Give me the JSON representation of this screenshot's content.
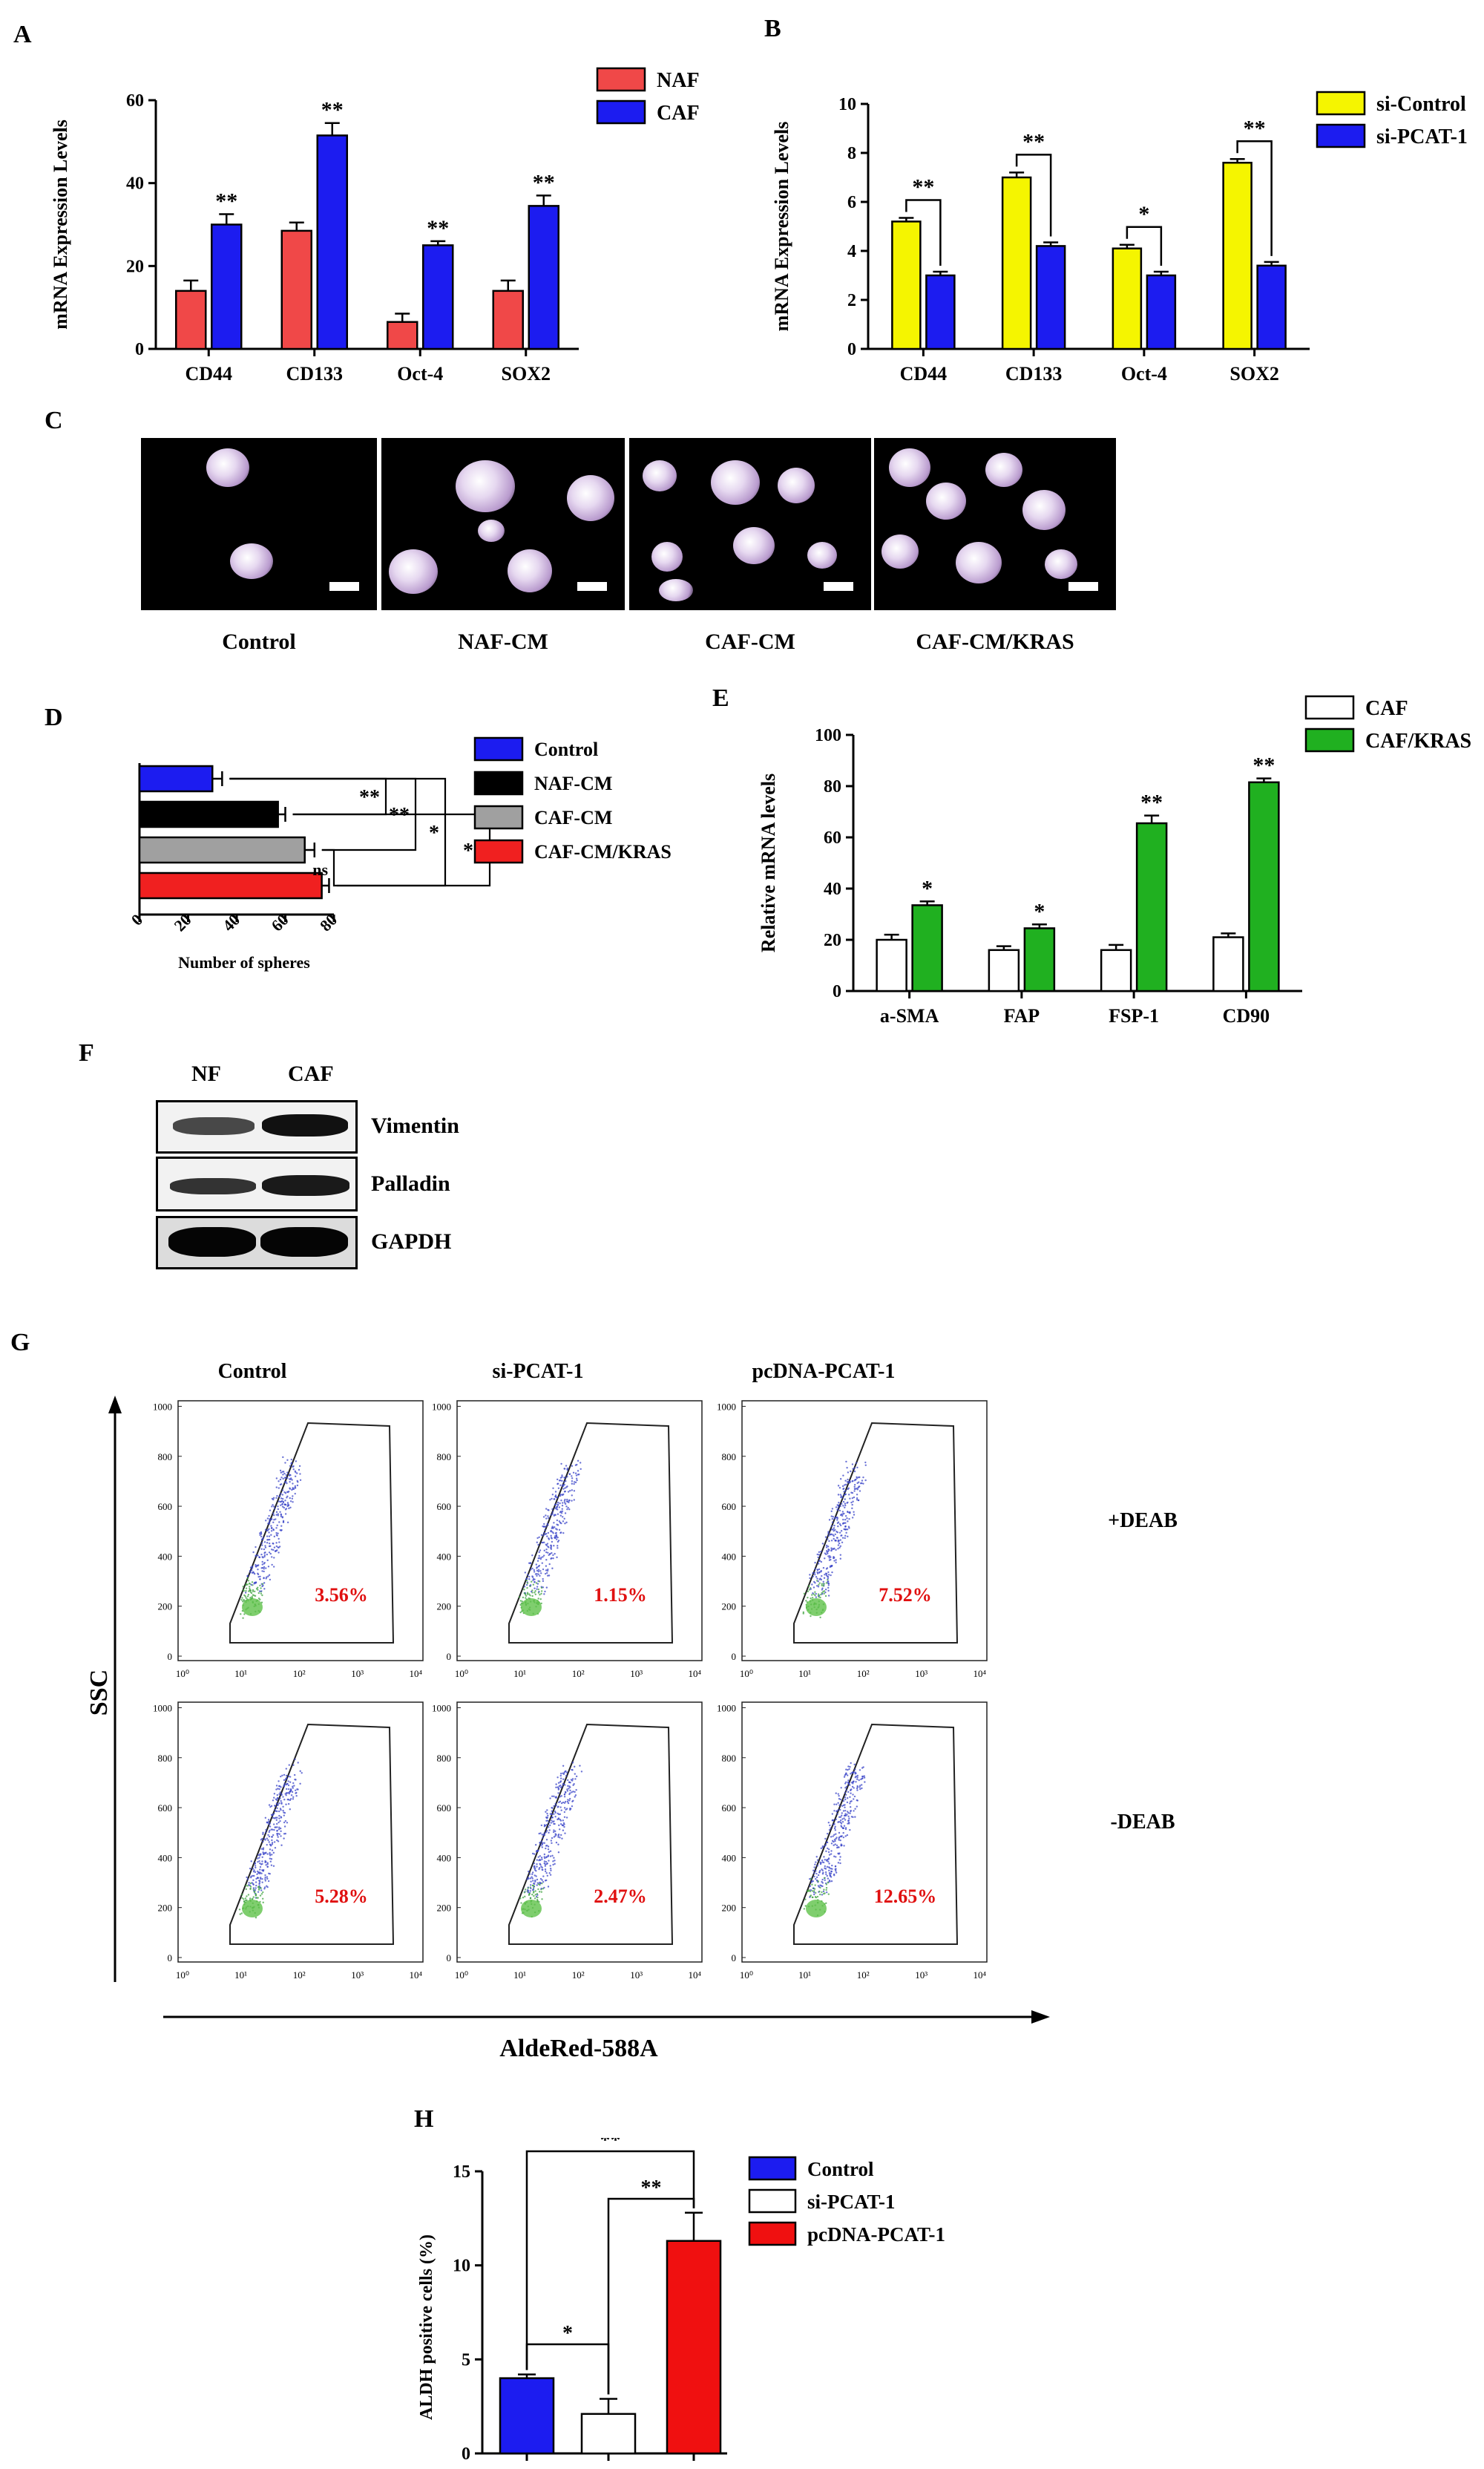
{
  "panels": {
    "A": "A",
    "B": "B",
    "C": "C",
    "D": "D",
    "E": "E",
    "F": "F",
    "G": "G",
    "H": "H"
  },
  "chart_data": [
    {
      "id": "A",
      "type": "bar",
      "ylabel": "mRNA Expression Levels",
      "categories": [
        "CD44",
        "CD133",
        "Oct-4",
        "SOX2"
      ],
      "ylim": [
        0,
        60
      ],
      "yticks": [
        0,
        20,
        40,
        60
      ],
      "series": [
        {
          "name": "NAF",
          "color": "#f04848",
          "values": [
            14,
            28.5,
            6.5,
            14
          ],
          "err": [
            2.5,
            2,
            2,
            2.5
          ],
          "sig": [
            "",
            "",
            "",
            ""
          ]
        },
        {
          "name": "CAF",
          "color": "#1c1cf0",
          "values": [
            30,
            51.5,
            25,
            34.5
          ],
          "err": [
            2.5,
            3,
            1,
            2.5
          ],
          "sig": [
            "**",
            "**",
            "**",
            "**"
          ]
        }
      ],
      "legend": "top-right"
    },
    {
      "id": "B",
      "type": "bar",
      "ylabel": "mRNA Expression Levels",
      "categories": [
        "CD44",
        "CD133",
        "Oct-4",
        "SOX2"
      ],
      "ylim": [
        0,
        10
      ],
      "yticks": [
        0,
        2,
        4,
        6,
        8,
        10
      ],
      "series": [
        {
          "name": "si-Control",
          "color": "#f5f500",
          "values": [
            5.2,
            7,
            4.1,
            7.6
          ],
          "err": [
            0.15,
            0.2,
            0.15,
            0.15
          ]
        },
        {
          "name": "si-PCAT-1",
          "color": "#1c1cf0",
          "values": [
            3,
            4.2,
            3,
            3.4
          ],
          "err": [
            0.15,
            0.15,
            0.15,
            0.15
          ]
        }
      ],
      "brackets": [
        "**",
        "**",
        "*",
        "**"
      ],
      "legend": "top-right"
    },
    {
      "id": "D",
      "type": "bar",
      "orientation": "horizontal",
      "xlabel": "Number of spheres",
      "categories": [
        "Control",
        "NAF-CM",
        "CAF-CM",
        "CAF-CM/KRAS"
      ],
      "values": [
        30,
        57,
        68,
        75
      ],
      "err": [
        4,
        3,
        4,
        3
      ],
      "colors": [
        "#1c1cf0",
        "#000000",
        "#a0a0a0",
        "#f02020"
      ],
      "xlim": [
        0,
        80
      ],
      "xticks": [
        0,
        20,
        40,
        60,
        80
      ],
      "brackets": [
        "**",
        "**",
        "**",
        "*",
        "ns"
      ],
      "legend": "right"
    },
    {
      "id": "E",
      "type": "bar",
      "ylabel": "Relative mRNA levels",
      "categories": [
        "a-SMA",
        "FAP",
        "FSP-1",
        "CD90"
      ],
      "ylim": [
        0,
        100
      ],
      "yticks": [
        0,
        20,
        40,
        60,
        80,
        100
      ],
      "series": [
        {
          "name": "CAF",
          "color": "#ffffff",
          "values": [
            20,
            16,
            16,
            21
          ],
          "err": [
            2,
            1.5,
            2,
            1.5
          ],
          "sig": [
            "",
            "",
            "",
            ""
          ]
        },
        {
          "name": "CAF/KRAS",
          "color": "#20b020",
          "values": [
            33.5,
            24.5,
            65.5,
            81.5
          ],
          "err": [
            1.5,
            1.5,
            3,
            1.5
          ],
          "sig": [
            "*",
            "*",
            "**",
            "**"
          ]
        }
      ],
      "legend": "top-right"
    },
    {
      "id": "H",
      "type": "bar",
      "ylabel": "ALDH positive cells (%)",
      "categories": [
        "Control",
        "si-PCAT-1",
        "pcDNA-PCAT-1"
      ],
      "values": [
        4,
        2.1,
        11.3
      ],
      "err": [
        0.2,
        0.8,
        1.5
      ],
      "colors": [
        "#1c1cf0",
        "#ffffff",
        "#f01010"
      ],
      "ylim": [
        0,
        15
      ],
      "yticks": [
        0,
        5,
        10,
        15
      ],
      "brackets": [
        "**",
        "**",
        "*"
      ],
      "legend": "top-right"
    }
  ],
  "panelC": {
    "captions": [
      "Control",
      "NAF-CM",
      "CAF-CM",
      "CAF-CM/KRAS"
    ]
  },
  "panelF": {
    "columns": [
      "NF",
      "CAF"
    ],
    "rows": [
      "Vimentin",
      "Palladin",
      "GAPDH"
    ]
  },
  "panelG": {
    "columns": [
      "Control",
      "si-PCAT-1",
      "pcDNA-PCAT-1"
    ],
    "rows": [
      "+DEAB",
      "-DEAB"
    ],
    "ylabel": "SSC",
    "xlabel": "AldeRed-588A",
    "yticks": [
      "0",
      "200",
      "400",
      "600",
      "800",
      "1000"
    ],
    "xticks": [
      "10⁰",
      "10¹",
      "10²",
      "10³",
      "10⁴"
    ],
    "percentages": [
      [
        "3.56%",
        "1.15%",
        "7.52%"
      ],
      [
        "5.28%",
        "2.47%",
        "12.65%"
      ]
    ]
  }
}
